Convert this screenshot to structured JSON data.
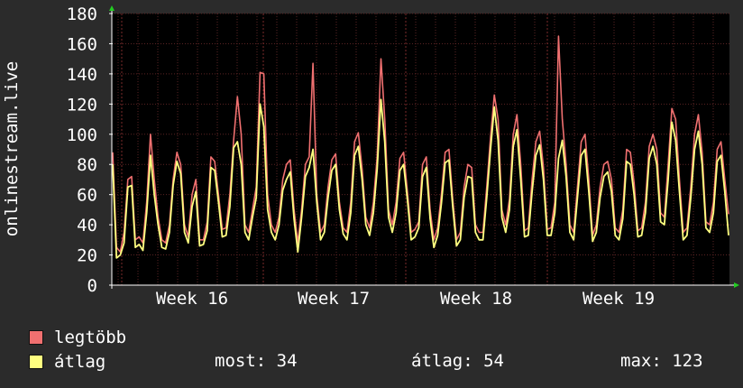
{
  "chart_data": {
    "type": "line",
    "ylabel": "onlinestream.live",
    "ylim": [
      0,
      180
    ],
    "y_ticks": [
      "0",
      "20",
      "40",
      "60",
      "80",
      "100",
      "120",
      "140",
      "160",
      "180"
    ],
    "x_ticks": [
      "Week 16",
      "Week 17",
      "Week 18",
      "Week 19"
    ],
    "grid": true,
    "series": [
      {
        "name": "legtöbb",
        "color": "#f07070",
        "values": [
          88,
          25,
          22,
          35,
          70,
          72,
          30,
          32,
          28,
          55,
          100,
          70,
          45,
          30,
          28,
          40,
          70,
          88,
          80,
          40,
          32,
          60,
          70,
          30,
          30,
          42,
          85,
          82,
          60,
          37,
          38,
          60,
          96,
          125,
          100,
          40,
          35,
          50,
          65,
          141,
          140,
          60,
          40,
          35,
          45,
          70,
          80,
          83,
          50,
          28,
          50,
          80,
          85,
          147,
          60,
          35,
          40,
          65,
          83,
          87,
          55,
          38,
          35,
          55,
          95,
          101,
          77,
          45,
          38,
          55,
          85,
          150,
          110,
          50,
          40,
          55,
          84,
          88,
          62,
          35,
          37,
          42,
          80,
          85,
          50,
          30,
          38,
          60,
          88,
          90,
          57,
          30,
          35,
          65,
          80,
          78,
          40,
          35,
          35,
          65,
          98,
          126,
          110,
          50,
          40,
          57,
          100,
          113,
          80,
          36,
          38,
          70,
          95,
          102,
          78,
          37,
          38,
          55,
          165,
          110,
          80,
          40,
          35,
          65,
          95,
          100,
          70,
          33,
          40,
          65,
          80,
          82,
          70,
          38,
          35,
          50,
          90,
          88,
          68,
          36,
          38,
          55,
          92,
          100,
          90,
          48,
          45,
          80,
          117,
          110,
          70,
          35,
          38,
          65,
          100,
          113,
          88,
          42,
          40,
          55,
          90,
          95,
          70,
          47
        ],
        "bind": "legend.series_0"
      },
      {
        "name": "átlag",
        "color": "#ffff80",
        "values": [
          80,
          18,
          20,
          28,
          65,
          66,
          25,
          27,
          23,
          48,
          86,
          60,
          40,
          25,
          24,
          35,
          66,
          82,
          74,
          35,
          28,
          52,
          62,
          26,
          27,
          36,
          78,
          76,
          55,
          32,
          33,
          52,
          91,
          95,
          80,
          35,
          30,
          45,
          58,
          120,
          105,
          50,
          35,
          30,
          40,
          63,
          70,
          75,
          44,
          22,
          45,
          72,
          78,
          90,
          55,
          30,
          35,
          58,
          76,
          80,
          50,
          34,
          30,
          48,
          86,
          92,
          70,
          40,
          33,
          48,
          77,
          123,
          95,
          45,
          35,
          48,
          76,
          80,
          57,
          30,
          32,
          38,
          72,
          78,
          44,
          25,
          33,
          54,
          81,
          83,
          52,
          26,
          30,
          58,
          72,
          71,
          35,
          30,
          30,
          58,
          90,
          118,
          96,
          45,
          35,
          50,
          92,
          103,
          70,
          32,
          33,
          62,
          86,
          93,
          70,
          33,
          33,
          48,
          84,
          96,
          72,
          35,
          30,
          58,
          86,
          90,
          62,
          29,
          35,
          58,
          72,
          75,
          62,
          33,
          30,
          44,
          82,
          80,
          60,
          32,
          33,
          48,
          84,
          92,
          80,
          42,
          40,
          70,
          108,
          96,
          62,
          30,
          33,
          58,
          90,
          102,
          80,
          38,
          35,
          48,
          82,
          86,
          62,
          33
        ]
      }
    ]
  },
  "legend": {
    "series_0": "legtöbb",
    "series_1": "átlag"
  },
  "stats": {
    "most": "most: 34",
    "atlag": "átlag: 54",
    "max": "max: 123"
  },
  "colors": {
    "background": "#2b2b2b",
    "plot_background": "#000000",
    "grid": "#5a2323",
    "axis": "#ffffff",
    "arrow": "#22cc22"
  }
}
